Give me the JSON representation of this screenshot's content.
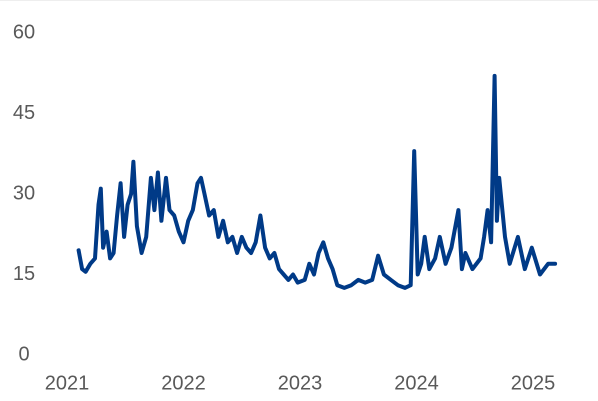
{
  "chart_data": {
    "type": "line",
    "x": [
      2021.1,
      2021.13,
      2021.16,
      2021.2,
      2021.24,
      2021.27,
      2021.29,
      2021.31,
      2021.34,
      2021.37,
      2021.4,
      2021.43,
      2021.46,
      2021.49,
      2021.52,
      2021.55,
      2021.57,
      2021.6,
      2021.64,
      2021.68,
      2021.72,
      2021.75,
      2021.78,
      2021.81,
      2021.85,
      2021.88,
      2021.92,
      2021.96,
      2022.0,
      2022.04,
      2022.08,
      2022.12,
      2022.15,
      2022.18,
      2022.22,
      2022.26,
      2022.3,
      2022.34,
      2022.38,
      2022.42,
      2022.46,
      2022.5,
      2022.54,
      2022.58,
      2022.62,
      2022.66,
      2022.7,
      2022.74,
      2022.78,
      2022.82,
      2022.86,
      2022.9,
      2022.94,
      2022.98,
      2023.04,
      2023.08,
      2023.12,
      2023.16,
      2023.2,
      2023.24,
      2023.28,
      2023.32,
      2023.38,
      2023.44,
      2023.5,
      2023.56,
      2023.62,
      2023.67,
      2023.72,
      2023.78,
      2023.84,
      2023.9,
      2023.95,
      2023.98,
      2024.01,
      2024.04,
      2024.07,
      2024.11,
      2024.16,
      2024.2,
      2024.25,
      2024.3,
      2024.36,
      2024.39,
      2024.42,
      2024.48,
      2024.55,
      2024.58,
      2024.61,
      2024.64,
      2024.67,
      2024.69,
      2024.71,
      2024.76,
      2024.8,
      2024.87,
      2024.93,
      2024.99,
      2025.06,
      2025.13,
      2025.19
    ],
    "series": [
      {
        "color": "#003a87",
        "values": [
          19.5,
          16,
          15.5,
          17,
          18,
          28,
          31,
          20,
          23,
          18,
          19,
          26,
          32,
          22,
          28,
          30,
          36,
          24,
          19,
          22,
          33,
          27,
          34,
          25,
          33,
          27,
          26,
          23,
          21,
          25,
          27,
          32,
          33,
          30,
          26,
          27,
          22,
          25,
          21,
          22,
          19,
          22,
          20,
          19,
          21,
          26,
          20,
          18,
          19,
          16,
          15,
          14,
          15,
          13.5,
          14,
          17,
          15,
          19,
          21,
          18,
          16,
          13,
          12.5,
          13,
          14,
          13.5,
          14,
          18.5,
          15,
          14,
          13,
          12.5,
          13,
          38,
          15,
          17,
          22,
          16,
          18,
          22,
          17,
          20,
          27,
          16,
          19,
          16,
          18,
          22,
          27,
          21,
          52,
          25,
          33,
          22,
          17,
          22,
          16,
          20,
          15,
          17,
          17
        ]
      }
    ],
    "xlim": [
      2020.9,
      2025.3
    ],
    "xticks": [
      2021,
      2022,
      2023,
      2024,
      2025
    ],
    "ylim": [
      0,
      60
    ],
    "yticks": [
      0,
      15,
      30,
      45,
      60
    ]
  }
}
